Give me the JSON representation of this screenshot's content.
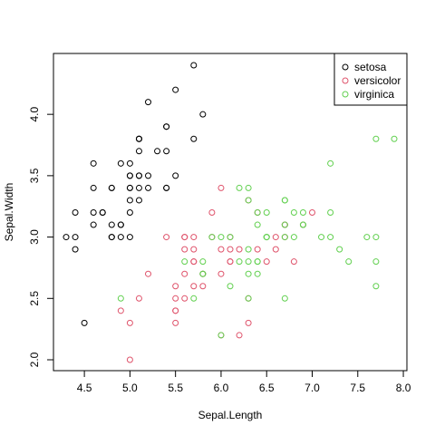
{
  "chart_data": {
    "type": "scatter",
    "title": "",
    "xlabel": "Sepal.Length",
    "ylabel": "Sepal.Width",
    "xlim": [
      4.3,
      7.9
    ],
    "ylim": [
      2.0,
      4.4
    ],
    "x_ticks": [
      "4.5",
      "5.0",
      "5.5",
      "6.0",
      "6.5",
      "7.0",
      "7.5",
      "8.0"
    ],
    "y_ticks": [
      "2.0",
      "2.5",
      "3.0",
      "3.5",
      "4.0"
    ],
    "grid": false,
    "legend_position": "top-right",
    "series": [
      {
        "name": "setosa",
        "color": "#000000",
        "points": [
          [
            5.1,
            3.5
          ],
          [
            4.9,
            3.0
          ],
          [
            4.7,
            3.2
          ],
          [
            4.6,
            3.1
          ],
          [
            5.0,
            3.6
          ],
          [
            5.4,
            3.9
          ],
          [
            4.6,
            3.4
          ],
          [
            5.0,
            3.4
          ],
          [
            4.4,
            2.9
          ],
          [
            4.9,
            3.1
          ],
          [
            5.4,
            3.7
          ],
          [
            4.8,
            3.4
          ],
          [
            4.8,
            3.0
          ],
          [
            4.3,
            3.0
          ],
          [
            5.8,
            4.0
          ],
          [
            5.7,
            4.4
          ],
          [
            5.4,
            3.9
          ],
          [
            5.1,
            3.5
          ],
          [
            5.7,
            3.8
          ],
          [
            5.1,
            3.8
          ],
          [
            5.4,
            3.4
          ],
          [
            5.1,
            3.7
          ],
          [
            4.6,
            3.6
          ],
          [
            5.1,
            3.3
          ],
          [
            4.8,
            3.4
          ],
          [
            5.0,
            3.0
          ],
          [
            5.0,
            3.4
          ],
          [
            5.2,
            3.5
          ],
          [
            5.2,
            3.4
          ],
          [
            4.7,
            3.2
          ],
          [
            4.8,
            3.1
          ],
          [
            5.4,
            3.4
          ],
          [
            5.2,
            4.1
          ],
          [
            5.5,
            4.2
          ],
          [
            4.9,
            3.1
          ],
          [
            5.0,
            3.2
          ],
          [
            5.5,
            3.5
          ],
          [
            4.9,
            3.6
          ],
          [
            4.4,
            3.0
          ],
          [
            5.1,
            3.4
          ],
          [
            5.0,
            3.5
          ],
          [
            4.5,
            2.3
          ],
          [
            4.4,
            3.2
          ],
          [
            5.0,
            3.5
          ],
          [
            5.1,
            3.8
          ],
          [
            4.8,
            3.0
          ],
          [
            5.1,
            3.8
          ],
          [
            4.6,
            3.2
          ],
          [
            5.3,
            3.7
          ],
          [
            5.0,
            3.3
          ]
        ]
      },
      {
        "name": "versicolor",
        "color": "#DF536B",
        "points": [
          [
            7.0,
            3.2
          ],
          [
            6.4,
            3.2
          ],
          [
            6.9,
            3.1
          ],
          [
            5.5,
            2.3
          ],
          [
            6.5,
            2.8
          ],
          [
            5.7,
            2.8
          ],
          [
            6.3,
            3.3
          ],
          [
            4.9,
            2.4
          ],
          [
            6.6,
            2.9
          ],
          [
            5.2,
            2.7
          ],
          [
            5.0,
            2.0
          ],
          [
            5.9,
            3.0
          ],
          [
            6.0,
            2.2
          ],
          [
            6.1,
            2.9
          ],
          [
            5.6,
            2.9
          ],
          [
            6.7,
            3.1
          ],
          [
            5.6,
            3.0
          ],
          [
            5.8,
            2.7
          ],
          [
            6.2,
            2.2
          ],
          [
            5.6,
            2.5
          ],
          [
            5.9,
            3.2
          ],
          [
            6.1,
            2.8
          ],
          [
            6.3,
            2.5
          ],
          [
            6.1,
            2.8
          ],
          [
            6.4,
            2.9
          ],
          [
            6.6,
            3.0
          ],
          [
            6.8,
            2.8
          ],
          [
            6.7,
            3.0
          ],
          [
            6.0,
            2.9
          ],
          [
            5.7,
            2.6
          ],
          [
            5.5,
            2.4
          ],
          [
            5.5,
            2.4
          ],
          [
            5.8,
            2.7
          ],
          [
            6.0,
            2.7
          ],
          [
            5.4,
            3.0
          ],
          [
            6.0,
            3.4
          ],
          [
            6.7,
            3.1
          ],
          [
            6.3,
            2.3
          ],
          [
            5.6,
            3.0
          ],
          [
            5.5,
            2.5
          ],
          [
            5.5,
            2.6
          ],
          [
            6.1,
            3.0
          ],
          [
            5.8,
            2.6
          ],
          [
            5.0,
            2.3
          ],
          [
            5.6,
            2.7
          ],
          [
            5.7,
            3.0
          ],
          [
            5.7,
            2.9
          ],
          [
            6.2,
            2.9
          ],
          [
            5.1,
            2.5
          ],
          [
            5.7,
            2.8
          ]
        ]
      },
      {
        "name": "virginica",
        "color": "#61D04F",
        "points": [
          [
            6.3,
            3.3
          ],
          [
            5.8,
            2.7
          ],
          [
            7.1,
            3.0
          ],
          [
            6.3,
            2.9
          ],
          [
            6.5,
            3.0
          ],
          [
            7.6,
            3.0
          ],
          [
            4.9,
            2.5
          ],
          [
            7.3,
            2.9
          ],
          [
            6.7,
            2.5
          ],
          [
            7.2,
            3.6
          ],
          [
            6.5,
            3.2
          ],
          [
            6.4,
            2.7
          ],
          [
            6.8,
            3.0
          ],
          [
            5.7,
            2.5
          ],
          [
            5.8,
            2.8
          ],
          [
            6.4,
            3.2
          ],
          [
            6.5,
            3.0
          ],
          [
            7.7,
            3.8
          ],
          [
            7.7,
            2.6
          ],
          [
            6.0,
            2.2
          ],
          [
            6.9,
            3.2
          ],
          [
            5.6,
            2.8
          ],
          [
            7.7,
            2.8
          ],
          [
            6.3,
            2.7
          ],
          [
            6.7,
            3.3
          ],
          [
            7.2,
            3.2
          ],
          [
            6.2,
            2.8
          ],
          [
            6.1,
            3.0
          ],
          [
            6.4,
            2.8
          ],
          [
            7.2,
            3.0
          ],
          [
            7.4,
            2.8
          ],
          [
            7.9,
            3.8
          ],
          [
            6.4,
            2.8
          ],
          [
            6.3,
            2.8
          ],
          [
            6.1,
            2.6
          ],
          [
            7.7,
            3.0
          ],
          [
            6.3,
            3.4
          ],
          [
            6.4,
            3.1
          ],
          [
            6.0,
            3.0
          ],
          [
            6.9,
            3.1
          ],
          [
            6.7,
            3.1
          ],
          [
            6.9,
            3.1
          ],
          [
            5.8,
            2.7
          ],
          [
            6.8,
            3.2
          ],
          [
            6.7,
            3.3
          ],
          [
            6.7,
            3.0
          ],
          [
            6.3,
            2.5
          ],
          [
            6.5,
            3.0
          ],
          [
            6.2,
            3.4
          ],
          [
            5.9,
            3.0
          ]
        ]
      }
    ]
  }
}
